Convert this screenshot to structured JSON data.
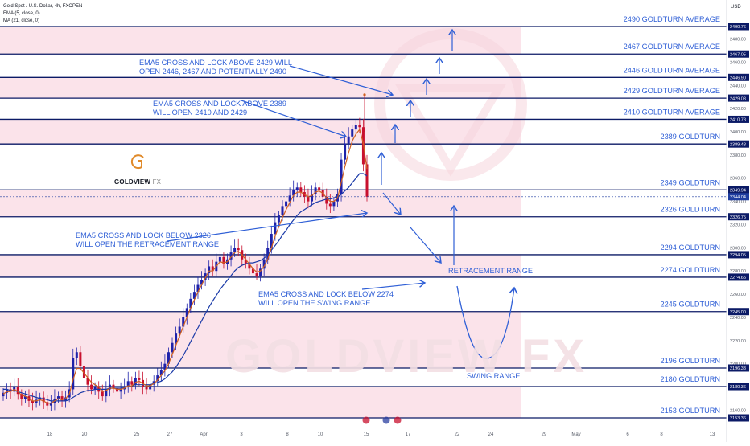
{
  "header": {
    "symbol_line": "Gold Spot / U.S. Dollar, 4h, FXOPEN",
    "ema_line": "EMA (5, close, 0)",
    "ma_line": "MA (21, close, 0)",
    "currency": "USD"
  },
  "logo": {
    "brand": "GOLDVIEW",
    "suffix": "FX",
    "watermark": "GOLDVIEW FX"
  },
  "colors": {
    "band": "#fbe3ea",
    "level_line": "#0b1a66",
    "annotation": "#2f5fd6",
    "candle_up": "#1e22aa",
    "candle_down": "#c8102e",
    "ema": "#d06020",
    "ma": "#1a3aa8"
  },
  "chart_data": {
    "type": "candlestick",
    "ylim": [
      2150,
      2500
    ],
    "x_ticks": [
      "18",
      "20",
      "25",
      "27",
      "Apr",
      "3",
      "8",
      "10",
      "15",
      "17",
      "22",
      "24",
      "29",
      "May",
      "6",
      "8",
      "13"
    ],
    "y_ticks": [
      2160,
      2180,
      2200,
      2220,
      2240,
      2260,
      2280,
      2300,
      2320,
      2340,
      2360,
      2380,
      2400,
      2420,
      2440,
      2460,
      2480
    ],
    "levels": [
      {
        "value": 2490.76,
        "label": "2490 GOLDTURN AVERAGE",
        "tag": "2490.76"
      },
      {
        "value": 2467.05,
        "label": "2467 GOLDTURN AVERAGE",
        "tag": "2467.05"
      },
      {
        "value": 2446.9,
        "label": "2446 GOLDTURN AVERAGE",
        "tag": "2446.90"
      },
      {
        "value": 2429.03,
        "label": "2429 GOLDTURN AVERAGE",
        "tag": "2429.03"
      },
      {
        "value": 2410.78,
        "label": "2410 GOLDTURN AVERAGE",
        "tag": "2410.78"
      },
      {
        "value": 2389.48,
        "label": "2389 GOLDTURN",
        "tag": "2389.48"
      },
      {
        "value": 2349.94,
        "label": "2349 GOLDTURN",
        "tag": "2349.94"
      },
      {
        "value": 2326.75,
        "label": "2326 GOLDTURN",
        "tag": "2326.75"
      },
      {
        "value": 2294.05,
        "label": "2294 GOLDTURN",
        "tag": "2294.05"
      },
      {
        "value": 2274.65,
        "label": "2274 GOLDTURN",
        "tag": "2274.65"
      },
      {
        "value": 2245.0,
        "label": "2245 GOLDTURN",
        "tag": "2245.00"
      },
      {
        "value": 2196.33,
        "label": "2196 GOLDTURN",
        "tag": "2196.33"
      },
      {
        "value": 2180.36,
        "label": "2180 GOLDTURN",
        "tag": "2180.36"
      },
      {
        "value": 2153.36,
        "label": "2153 GOLDTURN",
        "tag": "2153.36"
      }
    ],
    "current_price": {
      "value": 2344.04,
      "tag": "2344.04"
    },
    "range_labels": [
      "RETRACEMENT RANGE",
      "SWING RANGE"
    ],
    "annotations": [
      "EMA5 CROSS AND LOCK ABOVE 2429 WILL OPEN 2446, 2467 AND POTENTIALLY 2490",
      "EMA5 CROSS AND LOCK ABOVE 2389 WILL OPEN 2410 AND 2429",
      "EMA5 CROSS AND LOCK BELOW 2326 WILL  OPEN THE RETRACEMENT RANGE",
      "EMA5 CROSS AND LOCK BELOW 2274 WILL  OPEN THE SWING RANGE"
    ],
    "annotation_lines": [
      [
        "EMA5 CROSS AND LOCK ABOVE 2429 WILL",
        "OPEN 2446, 2467 AND POTENTIALLY 2490"
      ],
      [
        "EMA5 CROSS AND LOCK ABOVE 2389",
        "WILL OPEN 2410 AND 2429"
      ],
      [
        "EMA5 CROSS AND LOCK BELOW 2326",
        "WILL  OPEN THE RETRACEMENT RANGE"
      ],
      [
        "EMA5 CROSS AND LOCK BELOW 2274",
        "WILL  OPEN THE SWING RANGE"
      ]
    ],
    "candles_close": [
      2175,
      2178,
      2176,
      2180,
      2174,
      2170,
      2172,
      2168,
      2166,
      2169,
      2171,
      2167,
      2164,
      2166,
      2170,
      2172,
      2168,
      2171,
      2178,
      2205,
      2210,
      2198,
      2188,
      2182,
      2178,
      2180,
      2176,
      2172,
      2178,
      2182,
      2179,
      2176,
      2178,
      2180,
      2185,
      2182,
      2188,
      2186,
      2180,
      2178,
      2182,
      2185,
      2190,
      2195,
      2200,
      2210,
      2218,
      2226,
      2232,
      2240,
      2248,
      2256,
      2262,
      2268,
      2272,
      2278,
      2284,
      2280,
      2288,
      2292,
      2286,
      2290,
      2296,
      2300,
      2298,
      2290,
      2286,
      2282,
      2278,
      2276,
      2282,
      2290,
      2300,
      2312,
      2322,
      2328,
      2336,
      2340,
      2345,
      2350,
      2352,
      2348,
      2344,
      2340,
      2346,
      2352,
      2350,
      2344,
      2338,
      2336,
      2340,
      2346,
      2376,
      2390,
      2396,
      2402,
      2406,
      2404,
      2372,
      2344
    ],
    "ema5": [
      2174,
      2176,
      2176,
      2178,
      2176,
      2173,
      2172,
      2170,
      2168,
      2168,
      2169,
      2168,
      2166,
      2166,
      2168,
      2170,
      2169,
      2170,
      2174,
      2186,
      2196,
      2196,
      2192,
      2188,
      2184,
      2182,
      2180,
      2176,
      2177,
      2179,
      2179,
      2178,
      2178,
      2179,
      2181,
      2181,
      2184,
      2185,
      2183,
      2181,
      2181,
      2183,
      2186,
      2190,
      2194,
      2200,
      2208,
      2216,
      2224,
      2232,
      2240,
      2248,
      2255,
      2262,
      2268,
      2274,
      2280,
      2280,
      2284,
      2288,
      2287,
      2288,
      2292,
      2296,
      2297,
      2294,
      2290,
      2286,
      2282,
      2279,
      2280,
      2284,
      2290,
      2300,
      2310,
      2318,
      2326,
      2333,
      2339,
      2345,
      2348,
      2348,
      2346,
      2344,
      2345,
      2348,
      2349,
      2347,
      2343,
      2340,
      2340,
      2343,
      2356,
      2370,
      2382,
      2392,
      2398,
      2402,
      2390,
      2368
    ],
    "ma21": [
      2178,
      2178,
      2177,
      2177,
      2176,
      2175,
      2174,
      2173,
      2172,
      2171,
      2170,
      2170,
      2169,
      2168,
      2168,
      2168,
      2168,
      2168,
      2169,
      2171,
      2173,
      2175,
      2176,
      2177,
      2177,
      2178,
      2178,
      2178,
      2178,
      2179,
      2179,
      2179,
      2179,
      2180,
      2180,
      2181,
      2182,
      2182,
      2182,
      2182,
      2182,
      2183,
      2184,
      2185,
      2187,
      2190,
      2193,
      2197,
      2202,
      2207,
      2213,
      2219,
      2225,
      2231,
      2237,
      2243,
      2249,
      2254,
      2259,
      2264,
      2268,
      2272,
      2276,
      2280,
      2283,
      2285,
      2286,
      2287,
      2287,
      2288,
      2289,
      2291,
      2294,
      2298,
      2302,
      2306,
      2311,
      2315,
      2320,
      2324,
      2328,
      2331,
      2333,
      2335,
      2337,
      2339,
      2340,
      2341,
      2342,
      2342,
      2343,
      2344,
      2346,
      2349,
      2352,
      2356,
      2360,
      2364,
      2364,
      2362
    ]
  }
}
